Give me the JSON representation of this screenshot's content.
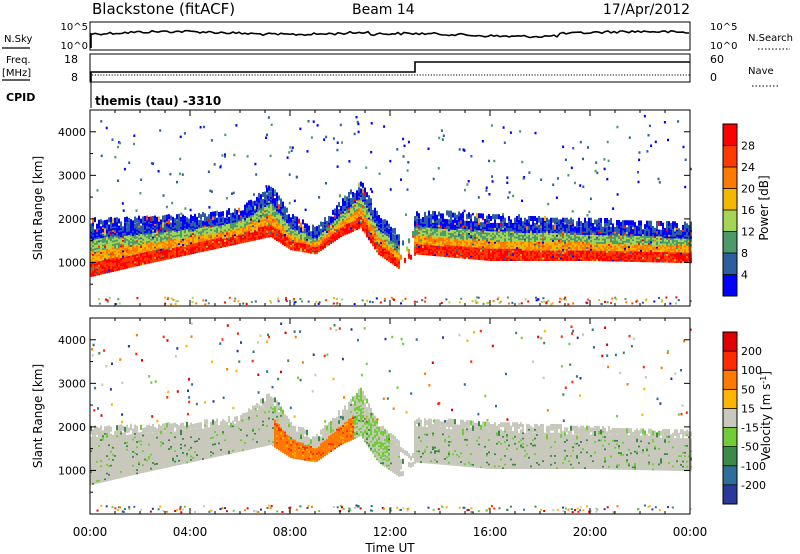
{
  "header": {
    "station": "Blackstone (fitACF)",
    "beam": "Beam 14",
    "date": "17/Apr/2012"
  },
  "top_panel": {
    "nsky_label": "N.Sky",
    "nsky_ticks": [
      "10^5",
      "10^0"
    ],
    "nsearch_label": "N.Search",
    "nsearch_ticks": [
      "10^5",
      "10^0"
    ],
    "freq_label": "Freq.",
    "freq_unit": "[MHz]",
    "freq_ticks": [
      "18",
      "8"
    ],
    "nave_label": "Nave",
    "nave_ticks": [
      "60",
      "0"
    ],
    "cpid_label": "CPID",
    "cpid_value": "themis (tau) -3310",
    "freq_step_hour": 13.0
  },
  "chart_data": [
    {
      "type": "heatmap",
      "parameter": "power",
      "ylabel": "Slant Range [km]",
      "ylim": [
        0,
        4500
      ],
      "yticks": [
        1000,
        2000,
        3000,
        4000
      ],
      "xlim": [
        0,
        24
      ],
      "colorbar": {
        "label": "Power [dB]",
        "ticks": [
          "28",
          "24",
          "20",
          "16",
          "12",
          "8",
          "4"
        ],
        "colors": [
          "#0000ff",
          "#2d5fa0",
          "#4c9a6a",
          "#a6d454",
          "#f5b800",
          "#ff7a00",
          "#ff3a00",
          "#ff0000"
        ]
      },
      "echo_band": [
        {
          "hour": 0,
          "lower": 780,
          "upper": 1900
        },
        {
          "hour": 2,
          "lower": 1050,
          "upper": 1950
        },
        {
          "hour": 4,
          "lower": 1300,
          "upper": 2000
        },
        {
          "hour": 6,
          "lower": 1550,
          "upper": 2150
        },
        {
          "hour": 7.2,
          "lower": 1700,
          "upper": 2700
        },
        {
          "hour": 8,
          "lower": 1400,
          "upper": 2000
        },
        {
          "hour": 9,
          "lower": 1300,
          "upper": 1700
        },
        {
          "hour": 10,
          "lower": 1700,
          "upper": 2300
        },
        {
          "hour": 10.8,
          "lower": 1900,
          "upper": 2800
        },
        {
          "hour": 11.5,
          "lower": 1300,
          "upper": 2000
        },
        {
          "hour": 12.5,
          "lower": 900,
          "upper": 1500
        },
        {
          "hour": 13,
          "lower": 1300,
          "upper": 2100
        },
        {
          "hour": 16,
          "lower": 1150,
          "upper": 2000
        },
        {
          "hour": 20,
          "lower": 1150,
          "upper": 1900
        },
        {
          "hour": 24,
          "lower": 1100,
          "upper": 1800
        }
      ]
    },
    {
      "type": "heatmap",
      "parameter": "velocity",
      "ylabel": "Slant Range [km]",
      "ylim": [
        0,
        4500
      ],
      "yticks": [
        1000,
        2000,
        3000,
        4000
      ],
      "xlim": [
        0,
        24
      ],
      "xticks": [
        "00:00",
        "04:00",
        "08:00",
        "12:00",
        "16:00",
        "20:00",
        "00:00"
      ],
      "xlabel": "Time UT",
      "colorbar": {
        "label": "Velocity [m s^-1]",
        "ticks": [
          "200",
          "100",
          "50",
          "15",
          "-15",
          "-50",
          "-100",
          "-200"
        ],
        "colors": [
          "#2a3a9a",
          "#2d6e9a",
          "#3c8a4a",
          "#72cc3a",
          "#c8c8bc",
          "#ffb400",
          "#ff7a00",
          "#ff2a00",
          "#e00000"
        ]
      },
      "ground_scatter_color": "#c8c8bc",
      "negative_patch": {
        "start_hour": 7.3,
        "end_hour": 10.5,
        "color": "#ff7a00"
      }
    }
  ]
}
